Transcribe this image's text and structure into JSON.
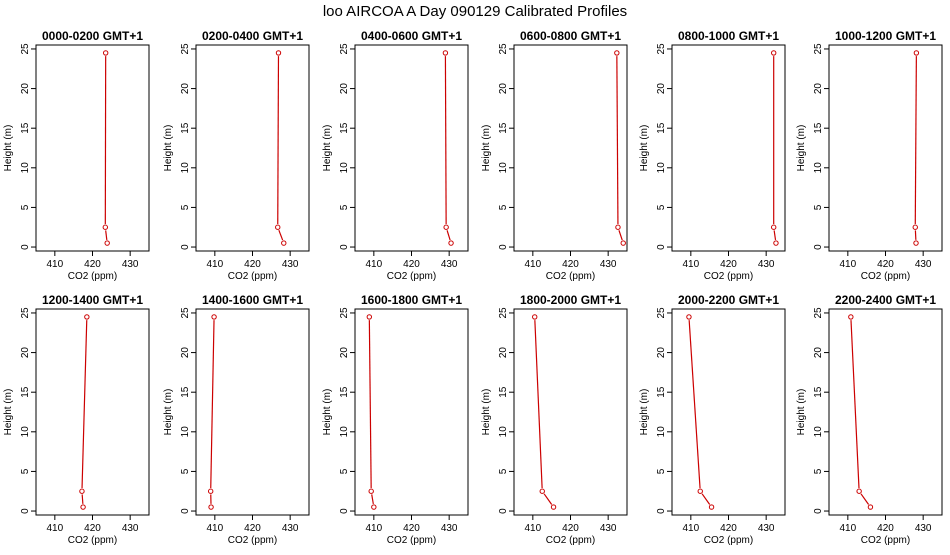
{
  "page": {
    "title": "loo AIRCOA A  Day 090129  Calibrated Profiles"
  },
  "colors": {
    "series": "#cc0000",
    "axis": "#000000"
  },
  "chart_data": [
    {
      "type": "line",
      "title": "0000-0200 GMT+1",
      "xlabel": "CO2 (ppm)",
      "ylabel": "Height (m)",
      "xlim": [
        405,
        435
      ],
      "ylim": [
        -0.5,
        25.5
      ],
      "xticks": [
        410,
        420,
        430
      ],
      "yticks": [
        0,
        5,
        10,
        15,
        20,
        25
      ],
      "x": [
        423.9,
        423.4,
        423.5
      ],
      "y": [
        0.5,
        2.5,
        24.5
      ]
    },
    {
      "type": "line",
      "title": "0200-0400 GMT+1",
      "xlabel": "CO2 (ppm)",
      "ylabel": "Height (m)",
      "xlim": [
        405,
        435
      ],
      "ylim": [
        -0.5,
        25.5
      ],
      "xticks": [
        410,
        420,
        430
      ],
      "yticks": [
        0,
        5,
        10,
        15,
        20,
        25
      ],
      "x": [
        428.3,
        426.7,
        426.9
      ],
      "y": [
        0.5,
        2.5,
        24.5
      ]
    },
    {
      "type": "line",
      "title": "0400-0600 GMT+1",
      "xlabel": "CO2 (ppm)",
      "ylabel": "Height (m)",
      "xlim": [
        405,
        435
      ],
      "ylim": [
        -0.5,
        25.5
      ],
      "xticks": [
        410,
        420,
        430
      ],
      "yticks": [
        0,
        5,
        10,
        15,
        20,
        25
      ],
      "x": [
        430.5,
        429.2,
        429.0
      ],
      "y": [
        0.5,
        2.5,
        24.5
      ]
    },
    {
      "type": "line",
      "title": "0600-0800 GMT+1",
      "xlabel": "CO2 (ppm)",
      "ylabel": "Height (m)",
      "xlim": [
        405,
        435
      ],
      "ylim": [
        -0.5,
        25.5
      ],
      "xticks": [
        410,
        420,
        430
      ],
      "yticks": [
        0,
        5,
        10,
        15,
        20,
        25
      ],
      "x": [
        434.0,
        432.6,
        432.3
      ],
      "y": [
        0.5,
        2.5,
        24.5
      ]
    },
    {
      "type": "line",
      "title": "0800-1000 GMT+1",
      "xlabel": "CO2 (ppm)",
      "ylabel": "Height (m)",
      "xlim": [
        405,
        435
      ],
      "ylim": [
        -0.5,
        25.5
      ],
      "xticks": [
        410,
        420,
        430
      ],
      "yticks": [
        0,
        5,
        10,
        15,
        20,
        25
      ],
      "x": [
        432.6,
        432.0,
        432.0
      ],
      "y": [
        0.5,
        2.5,
        24.5
      ]
    },
    {
      "type": "line",
      "title": "1000-1200 GMT+1",
      "xlabel": "CO2 (ppm)",
      "ylabel": "Height (m)",
      "xlim": [
        405,
        435
      ],
      "ylim": [
        -0.5,
        25.5
      ],
      "xticks": [
        410,
        420,
        430
      ],
      "yticks": [
        0,
        5,
        10,
        15,
        20,
        25
      ],
      "x": [
        428.1,
        427.9,
        428.2
      ],
      "y": [
        0.5,
        2.5,
        24.5
      ]
    },
    {
      "type": "line",
      "title": "1200-1400 GMT+1",
      "xlabel": "CO2 (ppm)",
      "ylabel": "Height (m)",
      "xlim": [
        405,
        435
      ],
      "ylim": [
        -0.5,
        25.5
      ],
      "xticks": [
        410,
        420,
        430
      ],
      "yticks": [
        0,
        5,
        10,
        15,
        20,
        25
      ],
      "x": [
        417.5,
        417.2,
        418.5
      ],
      "y": [
        0.5,
        2.5,
        24.5
      ]
    },
    {
      "type": "line",
      "title": "1400-1600 GMT+1",
      "xlabel": "CO2 (ppm)",
      "ylabel": "Height (m)",
      "xlim": [
        405,
        435
      ],
      "ylim": [
        -0.5,
        25.5
      ],
      "xticks": [
        410,
        420,
        430
      ],
      "yticks": [
        0,
        5,
        10,
        15,
        20,
        25
      ],
      "x": [
        409.0,
        408.9,
        409.8
      ],
      "y": [
        0.5,
        2.5,
        24.5
      ]
    },
    {
      "type": "line",
      "title": "1600-1800 GMT+1",
      "xlabel": "CO2 (ppm)",
      "ylabel": "Height (m)",
      "xlim": [
        405,
        435
      ],
      "ylim": [
        -0.5,
        25.5
      ],
      "xticks": [
        410,
        420,
        430
      ],
      "yticks": [
        0,
        5,
        10,
        15,
        20,
        25
      ],
      "x": [
        410.0,
        409.3,
        408.8
      ],
      "y": [
        0.5,
        2.5,
        24.5
      ]
    },
    {
      "type": "line",
      "title": "1800-2000 GMT+1",
      "xlabel": "CO2 (ppm)",
      "ylabel": "Height (m)",
      "xlim": [
        405,
        435
      ],
      "ylim": [
        -0.5,
        25.5
      ],
      "xticks": [
        410,
        420,
        430
      ],
      "yticks": [
        0,
        5,
        10,
        15,
        20,
        25
      ],
      "x": [
        415.5,
        412.5,
        410.5
      ],
      "y": [
        0.5,
        2.5,
        24.5
      ]
    },
    {
      "type": "line",
      "title": "2000-2200 GMT+1",
      "xlabel": "CO2 (ppm)",
      "ylabel": "Height (m)",
      "xlim": [
        405,
        435
      ],
      "ylim": [
        -0.5,
        25.5
      ],
      "xticks": [
        410,
        420,
        430
      ],
      "yticks": [
        0,
        5,
        10,
        15,
        20,
        25
      ],
      "x": [
        415.5,
        412.5,
        409.5
      ],
      "y": [
        0.5,
        2.5,
        24.5
      ]
    },
    {
      "type": "line",
      "title": "2200-2400 GMT+1",
      "xlabel": "CO2 (ppm)",
      "ylabel": "Height (m)",
      "xlim": [
        405,
        435
      ],
      "ylim": [
        -0.5,
        25.5
      ],
      "xticks": [
        410,
        420,
        430
      ],
      "yticks": [
        0,
        5,
        10,
        15,
        20,
        25
      ],
      "x": [
        416.0,
        413.0,
        410.8
      ],
      "y": [
        0.5,
        2.5,
        24.5
      ]
    }
  ]
}
